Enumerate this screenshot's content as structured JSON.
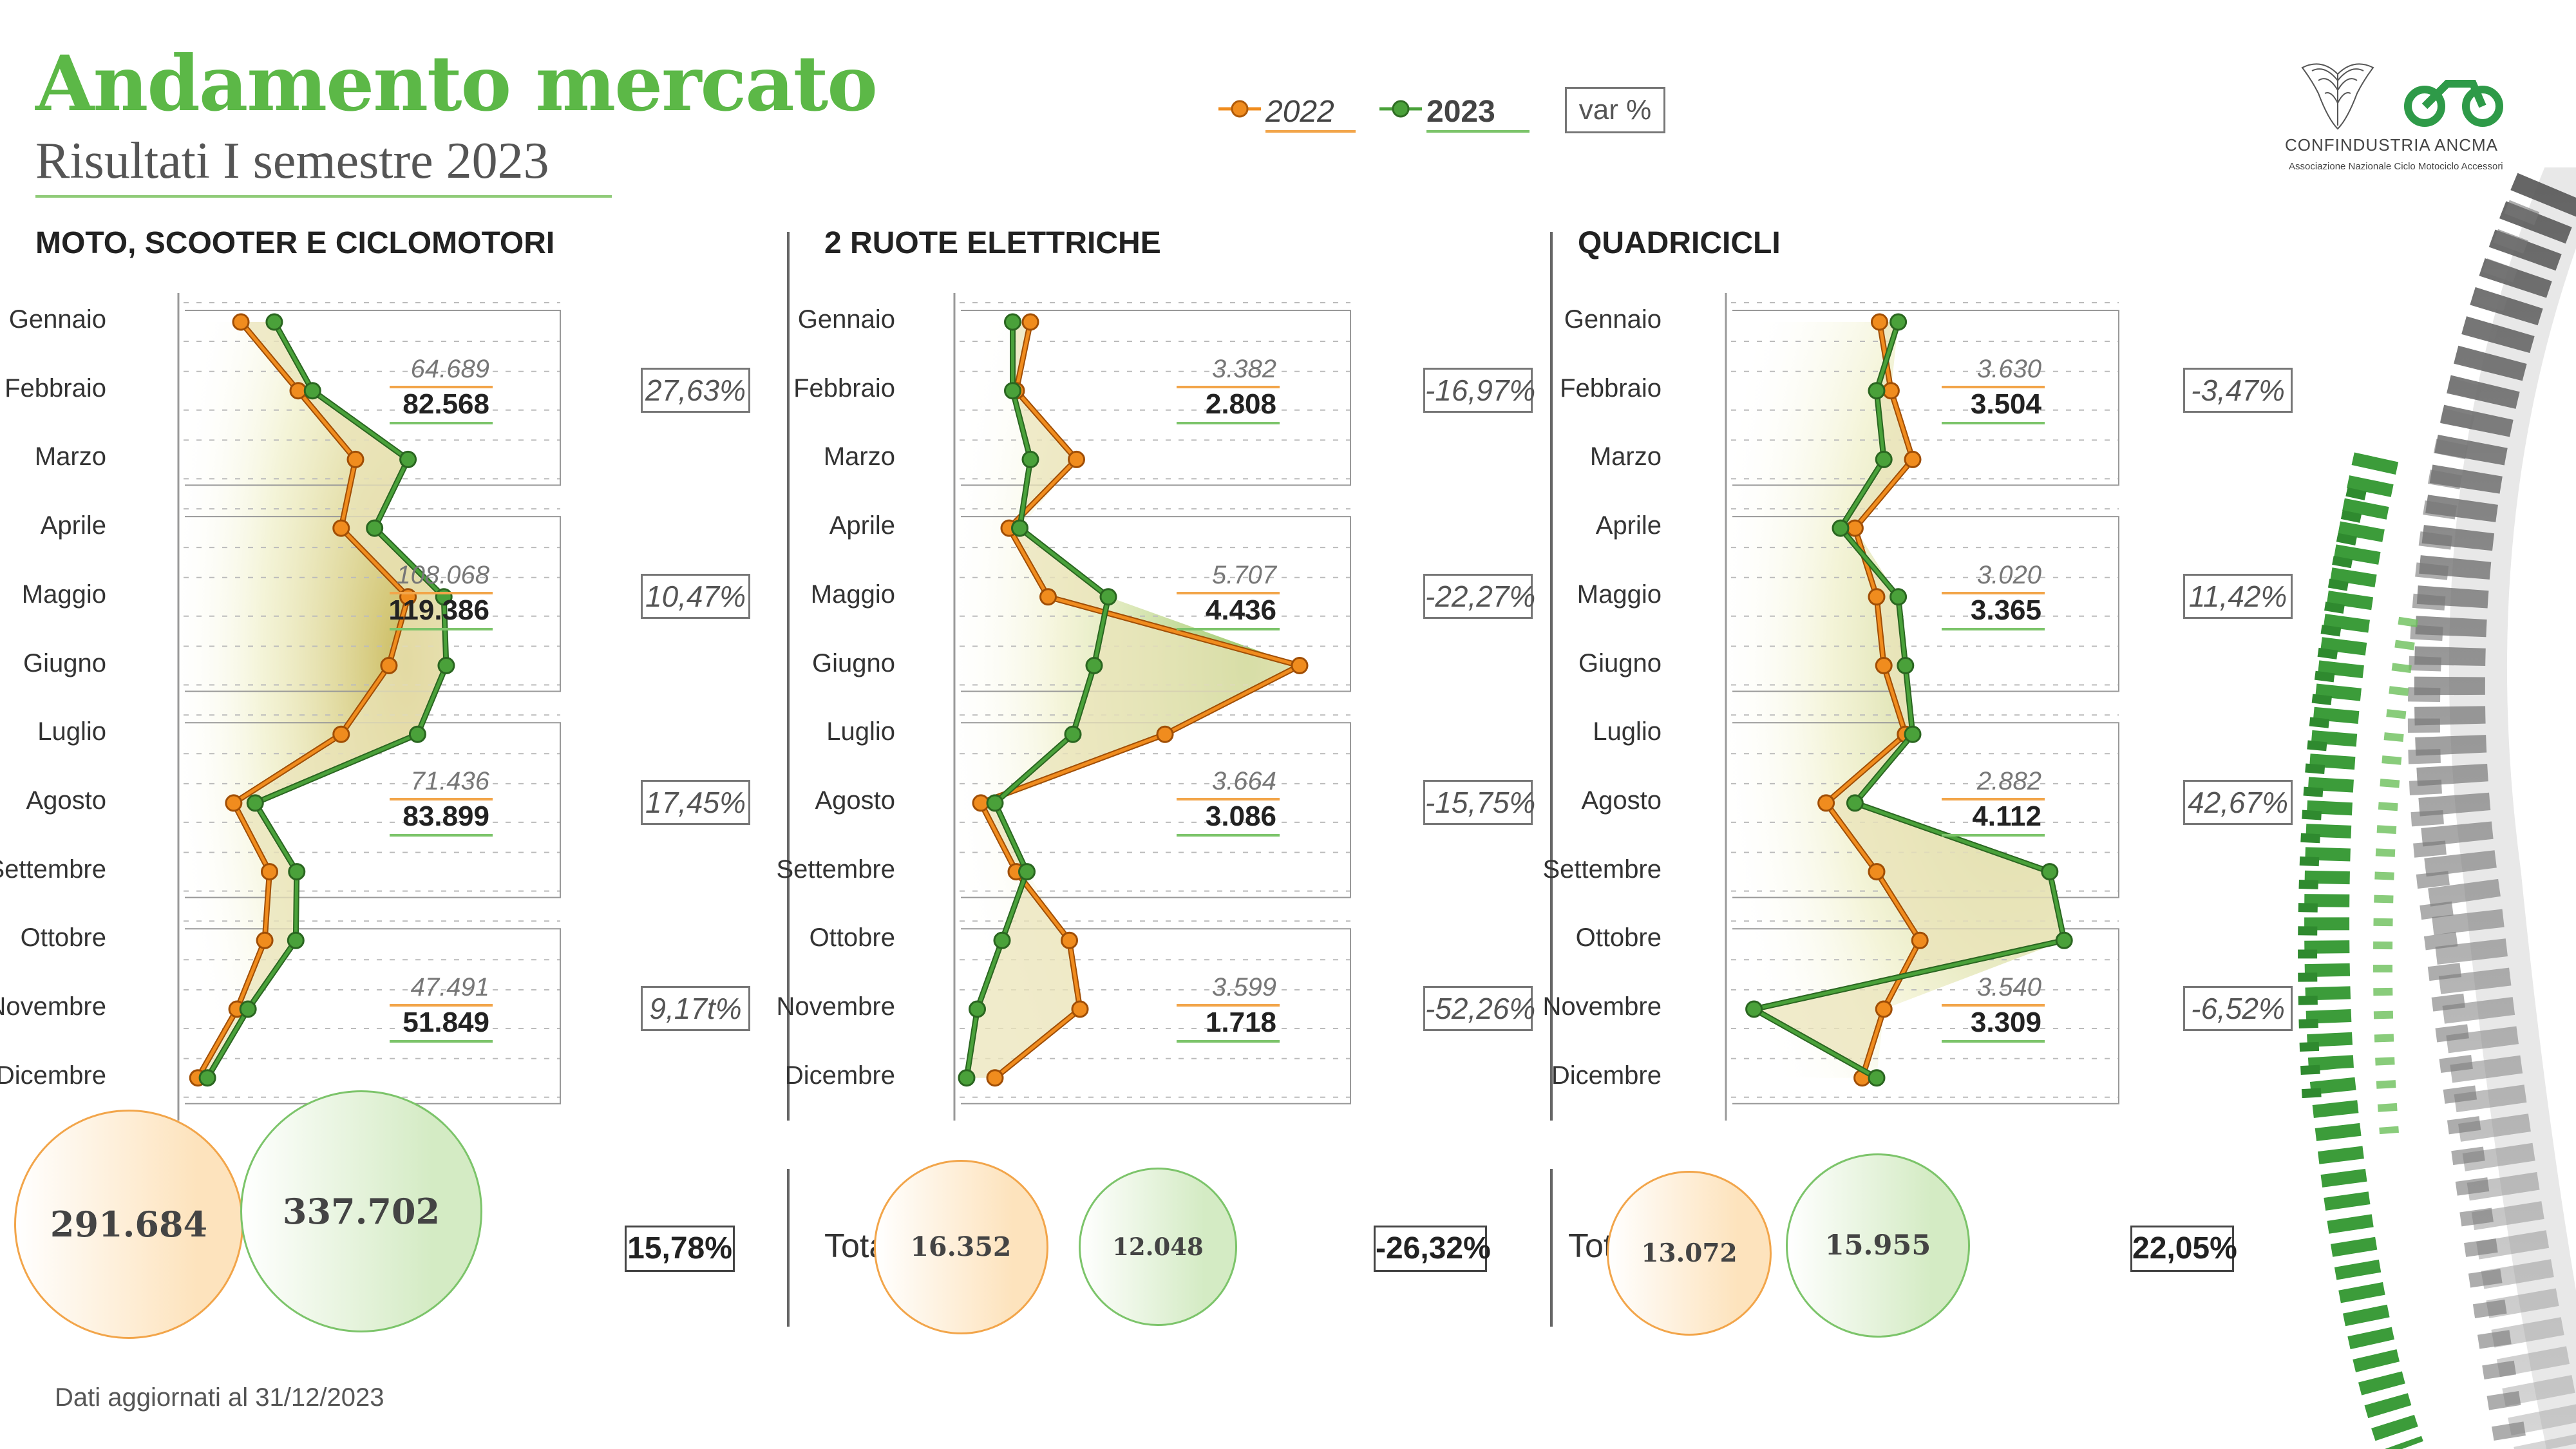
{
  "header": {
    "title": "Andamento mercato",
    "subtitle": "Risultati I semestre 2023"
  },
  "legend": {
    "y2022": "2022",
    "y2023": "2023",
    "var": "var %"
  },
  "colors": {
    "y2022": "#f08c1e",
    "y2023": "#4aa13a",
    "title": "#5cb847"
  },
  "logo": {
    "name": "CONFINDUSTRIA ANCMA",
    "subtitle": "Associazione Nazionale Ciclo Motociclo Accessori"
  },
  "months": [
    "Gennaio",
    "Febbraio",
    "Marzo",
    "Aprile",
    "Maggio",
    "Giugno",
    "Luglio",
    "Agosto",
    "Settembre",
    "Ottobre",
    "Novembre",
    "Dicembre"
  ],
  "total_label": "Totale",
  "footnote": "Dati aggiornati al 31/12/2023",
  "chart_data": [
    {
      "type": "line",
      "title": "MOTO, SCOOTER E CICLOMOTORI",
      "categories": [
        "Gennaio",
        "Febbraio",
        "Marzo",
        "Aprile",
        "Maggio",
        "Giugno",
        "Luglio",
        "Agosto",
        "Settembre",
        "Ottobre",
        "Novembre",
        "Dicembre"
      ],
      "series": [
        {
          "name": "2022",
          "values": [
            12000,
            24000,
            36000,
            33000,
            47000,
            43000,
            33000,
            10500,
            18000,
            17000,
            11200,
            3000
          ]
        },
        {
          "name": "2023",
          "values": [
            19000,
            27000,
            47000,
            40000,
            54500,
            55000,
            49000,
            15000,
            23700,
            23500,
            13500,
            5000
          ]
        }
      ],
      "quarters": [
        {
          "v2022": "64.689",
          "v2023": "82.568",
          "var": "27,63%"
        },
        {
          "v2022": "108.068",
          "v2023": "119.386",
          "var": "10,47%"
        },
        {
          "v2022": "71.436",
          "v2023": "83.899",
          "var": "17,45%"
        },
        {
          "v2022": "47.491",
          "v2023": "51.849",
          "var": "9,17t%"
        }
      ],
      "totals": {
        "v2022": "291.684",
        "v2023": "337.702",
        "var": "15,78%"
      }
    },
    {
      "type": "line",
      "title": "2 RUOTE ELETTRICHE",
      "categories": [
        "Gennaio",
        "Febbraio",
        "Marzo",
        "Aprile",
        "Maggio",
        "Giugno",
        "Luglio",
        "Agosto",
        "Settembre",
        "Ottobre",
        "Novembre",
        "Dicembre"
      ],
      "series": [
        {
          "name": "2022",
          "values": [
            1000,
            800,
            1650,
            700,
            1250,
            4800,
            2900,
            300,
            800,
            1550,
            1700,
            500
          ]
        },
        {
          "name": "2023",
          "values": [
            750,
            750,
            1000,
            850,
            2100,
            1900,
            1600,
            500,
            950,
            600,
            250,
            100
          ]
        }
      ],
      "quarters": [
        {
          "v2022": "3.382",
          "v2023": "2.808",
          "var": "-16,97%"
        },
        {
          "v2022": "5.707",
          "v2023": "4.436",
          "var": "-22,27%"
        },
        {
          "v2022": "3.664",
          "v2023": "3.086",
          "var": "-15,75%"
        },
        {
          "v2022": "3.599",
          "v2023": "1.718",
          "var": "-52,26%"
        }
      ],
      "totals": {
        "v2022": "16.352",
        "v2023": "12.048",
        "var": "-26,32%"
      }
    },
    {
      "type": "line",
      "title": "QUADRICICLI",
      "categories": [
        "Gennaio",
        "Febbraio",
        "Marzo",
        "Aprile",
        "Maggio",
        "Giugno",
        "Luglio",
        "Agosto",
        "Settembre",
        "Ottobre",
        "Novembre",
        "Dicembre"
      ],
      "series": [
        {
          "name": "2022",
          "values": [
            1020,
            1100,
            1250,
            850,
            1000,
            1050,
            1200,
            650,
            1000,
            1300,
            1050,
            900
          ]
        },
        {
          "name": "2023",
          "values": [
            1150,
            1000,
            1050,
            750,
            1150,
            1200,
            1250,
            850,
            2200,
            2300,
            150,
            1000
          ]
        }
      ],
      "quarters": [
        {
          "v2022": "3.630",
          "v2023": "3.504",
          "var": "-3,47%"
        },
        {
          "v2022": "3.020",
          "v2023": "3.365",
          "var": "11,42%"
        },
        {
          "v2022": "2.882",
          "v2023": "4.112",
          "var": "42,67%"
        },
        {
          "v2022": "3.540",
          "v2023": "3.309",
          "var": "-6,52%"
        }
      ],
      "totals": {
        "v2022": "13.072",
        "v2023": "15.955",
        "var": "22,05%"
      }
    }
  ]
}
